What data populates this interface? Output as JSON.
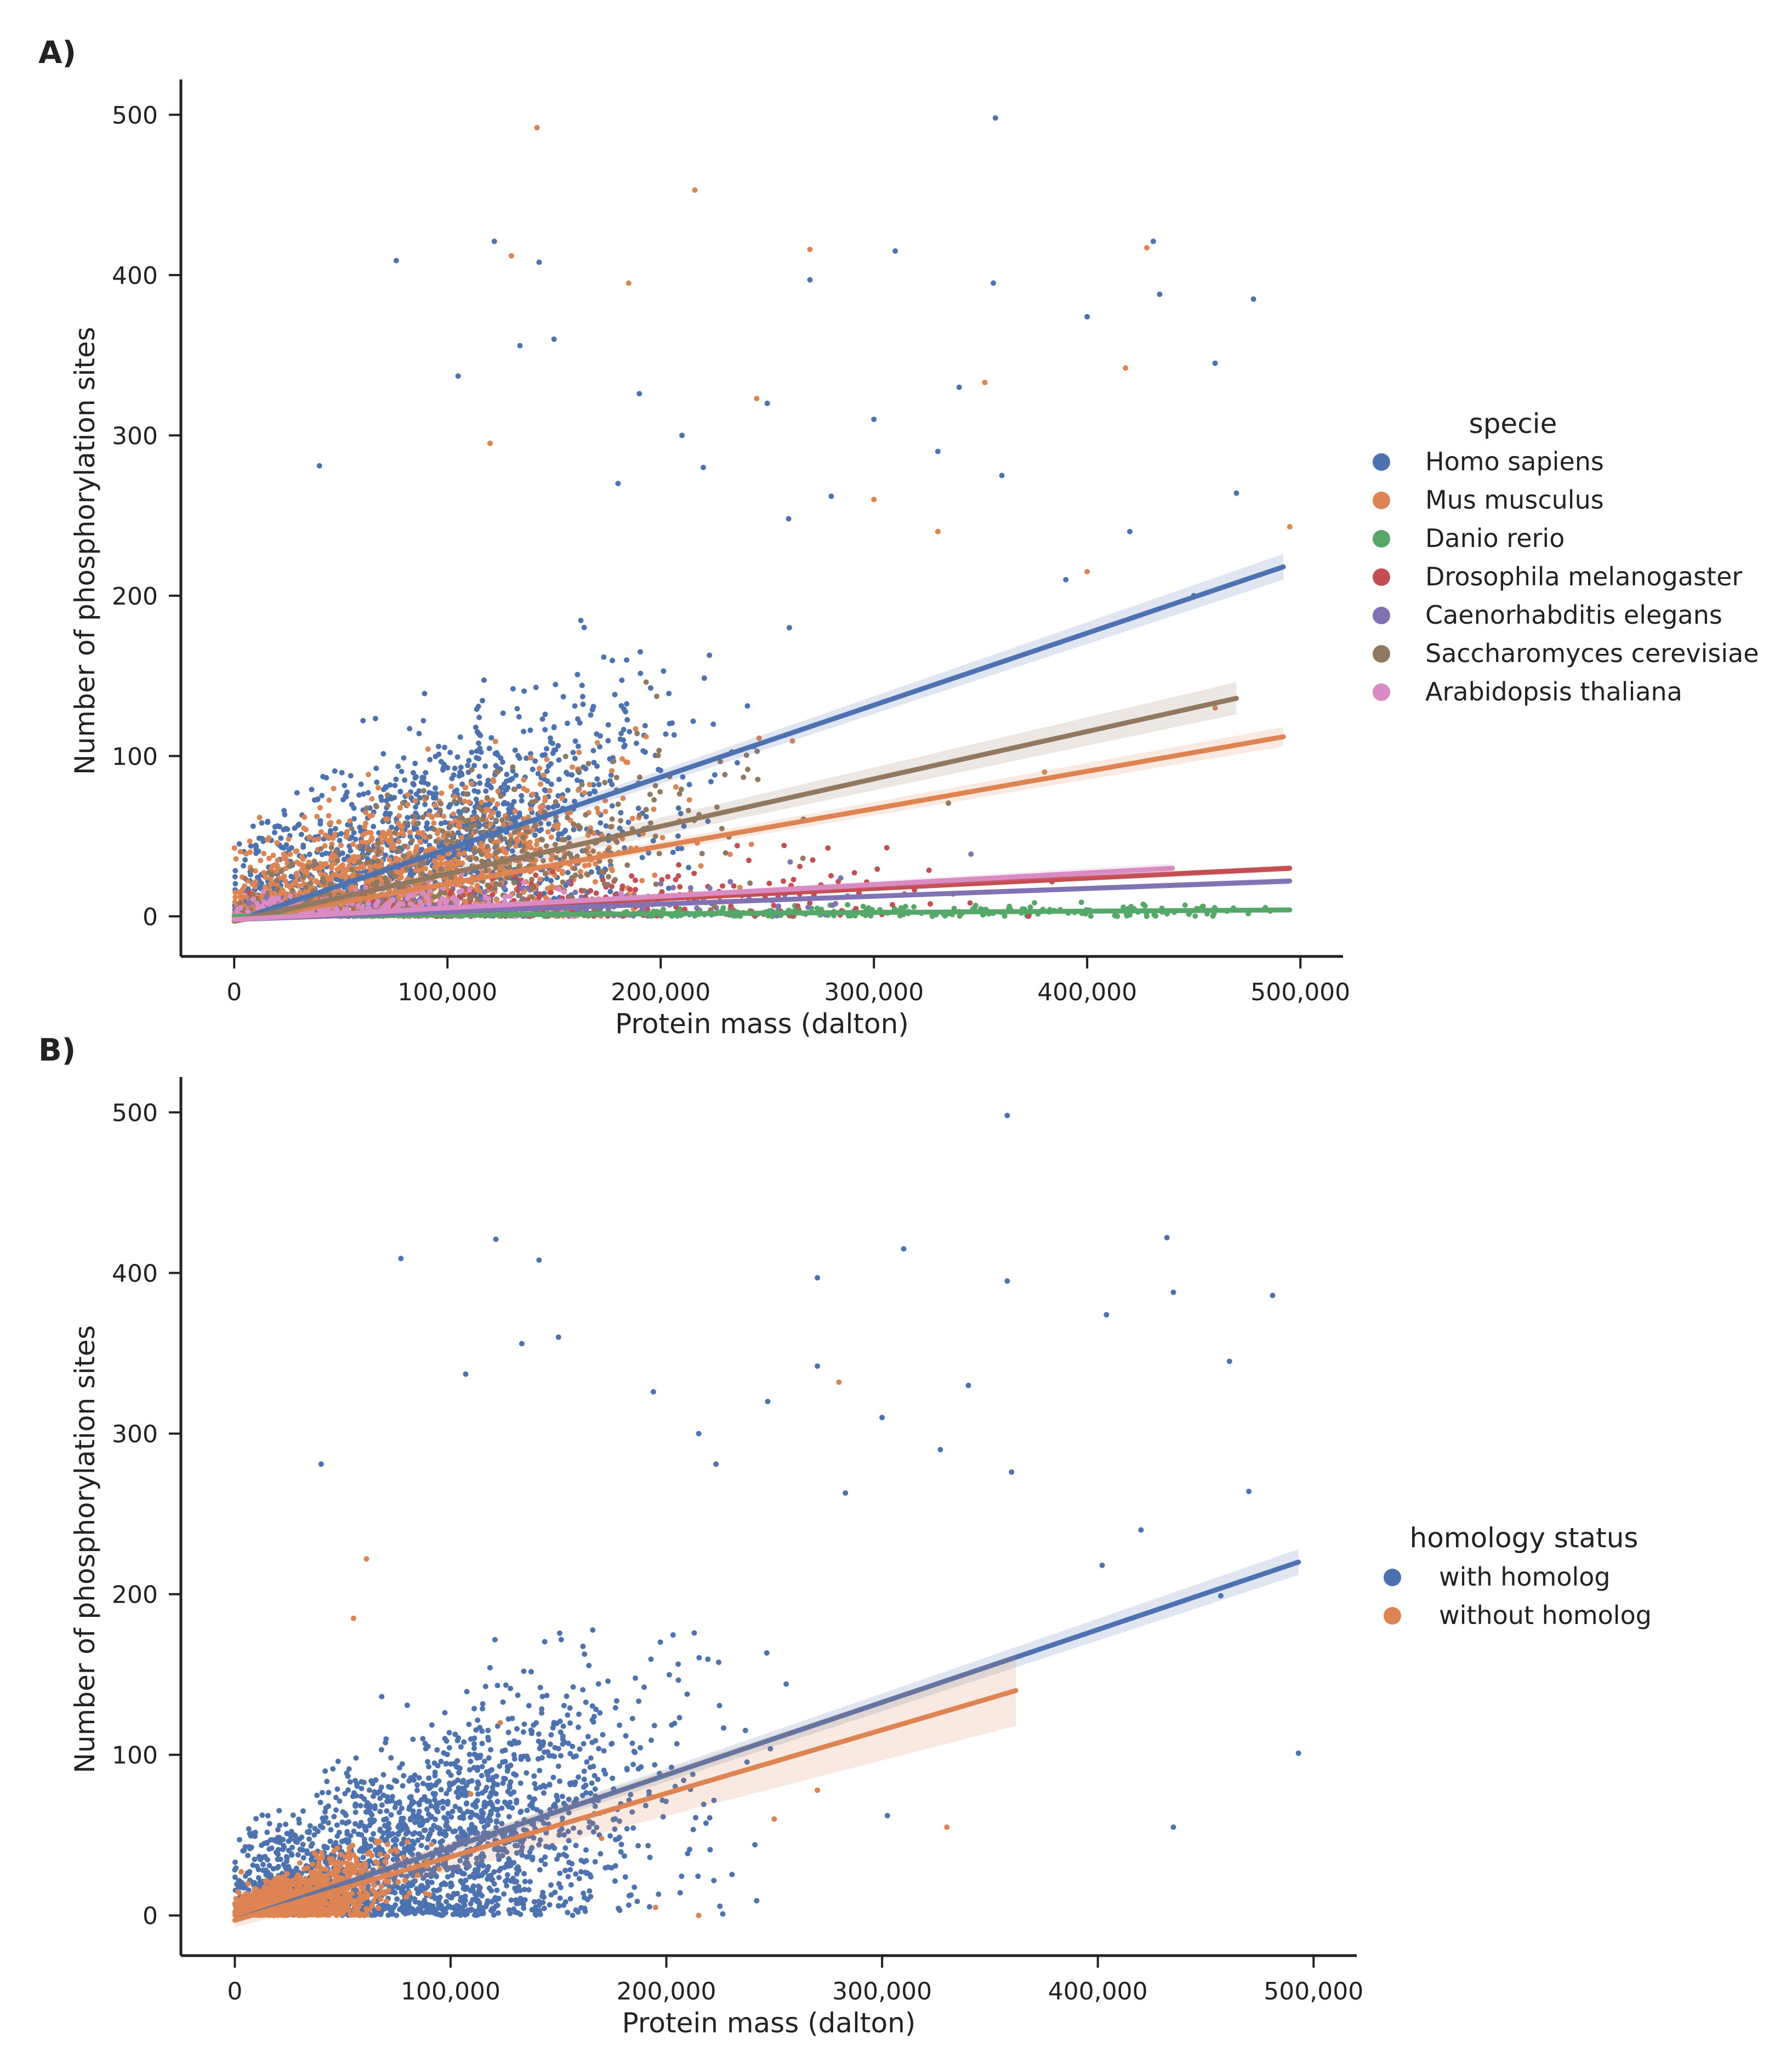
{
  "chart_data": [
    {
      "type": "scatter",
      "panel_label": "A)",
      "xlabel": "Protein mass (dalton)",
      "ylabel": "Number of phosphorylation sites",
      "xlim": [
        -25000,
        520000
      ],
      "ylim": [
        -25,
        522
      ],
      "xticks": [
        0,
        100000,
        200000,
        300000,
        400000,
        500000
      ],
      "xtick_labels": [
        "0",
        "100,000",
        "200,000",
        "300,000",
        "400,000",
        "500,000"
      ],
      "yticks": [
        0,
        100,
        200,
        300,
        400,
        500
      ],
      "ytick_labels": [
        "0",
        "100",
        "200",
        "300",
        "400",
        "500"
      ],
      "legend": {
        "title": "specie",
        "entries": [
          "Homo sapiens",
          "Mus musculus",
          "Danio rerio",
          "Drosophila melanogaster",
          "Caenorhabditis elegans",
          "Saccharomyces cerevisiae",
          "Arabidopsis thaliana"
        ],
        "placement": "right"
      },
      "series": [
        {
          "name": "Homo sapiens",
          "color": "#4c72b0",
          "fit": {
            "x": [
              0,
              492000
            ],
            "y": [
              -3,
              218
            ]
          },
          "ci": 8,
          "cloud_center": [
            90000,
            55
          ],
          "cloud_spread": [
            55000,
            40
          ],
          "n": 1500,
          "outliers": [
            [
              357000,
              498
            ],
            [
              122000,
              421
            ],
            [
              76000,
              409
            ],
            [
              143000,
              408
            ],
            [
              431000,
              421
            ],
            [
              434000,
              388
            ],
            [
              478000,
              385
            ],
            [
              400000,
              374
            ],
            [
              270000,
              397
            ],
            [
              310000,
              415
            ],
            [
              356000,
              395
            ],
            [
              134000,
              356
            ],
            [
              150000,
              360
            ],
            [
              40000,
              281
            ],
            [
              460000,
              345
            ],
            [
              190000,
              326
            ],
            [
              250000,
              320
            ],
            [
              340000,
              330
            ],
            [
              300000,
              310
            ],
            [
              105000,
              337
            ],
            [
              210000,
              300
            ],
            [
              280000,
              262
            ],
            [
              330000,
              290
            ],
            [
              220000,
              280
            ],
            [
              360000,
              275
            ],
            [
              260000,
              248
            ],
            [
              180000,
              270
            ],
            [
              420000,
              240
            ],
            [
              390000,
              210
            ],
            [
              450000,
              200
            ],
            [
              470000,
              264
            ]
          ]
        },
        {
          "name": "Mus musculus",
          "color": "#dd8452",
          "fit": {
            "x": [
              0,
              492000
            ],
            "y": [
              -3,
              112
            ]
          },
          "ci": 6,
          "cloud_center": [
            80000,
            45
          ],
          "cloud_spread": [
            55000,
            35
          ],
          "n": 1300,
          "outliers": [
            [
              142000,
              492
            ],
            [
              216000,
              453
            ],
            [
              270000,
              416
            ],
            [
              428000,
              417
            ],
            [
              130000,
              412
            ],
            [
              185000,
              395
            ],
            [
              418000,
              342
            ],
            [
              352000,
              333
            ],
            [
              120000,
              295
            ],
            [
              245000,
              323
            ],
            [
              300000,
              260
            ],
            [
              400000,
              215
            ],
            [
              330000,
              240
            ],
            [
              495000,
              243
            ],
            [
              460000,
              130
            ],
            [
              380000,
              90
            ]
          ]
        },
        {
          "name": "Danio rerio",
          "color": "#55a868",
          "fit": {
            "x": [
              0,
              495000
            ],
            "y": [
              0,
              4
            ]
          },
          "ci": 1,
          "cloud_center": [
            250000,
            2
          ],
          "cloud_spread": [
            140000,
            2
          ],
          "n": 350,
          "outliers": []
        },
        {
          "name": "Drosophila melanogaster",
          "color": "#c44e52",
          "fit": {
            "x": [
              0,
              495000
            ],
            "y": [
              -2,
              30
            ]
          },
          "ci": 2,
          "cloud_center": [
            150000,
            15
          ],
          "cloud_spread": [
            100000,
            12
          ],
          "n": 250,
          "outliers": []
        },
        {
          "name": "Caenorhabditis elegans",
          "color": "#8172b3",
          "fit": {
            "x": [
              0,
              495000
            ],
            "y": [
              -2,
              22
            ]
          },
          "ci": 2,
          "cloud_center": [
            120000,
            10
          ],
          "cloud_spread": [
            90000,
            8
          ],
          "n": 200,
          "outliers": []
        },
        {
          "name": "Saccharomyces cerevisiae",
          "color": "#937860",
          "fit": {
            "x": [
              0,
              470000
            ],
            "y": [
              -3,
              136
            ]
          },
          "ci": 10,
          "cloud_center": [
            110000,
            45
          ],
          "cloud_spread": [
            60000,
            30
          ],
          "n": 450,
          "outliers": []
        },
        {
          "name": "Arabidopsis thaliana",
          "color": "#da8bc3",
          "fit": {
            "x": [
              0,
              440000
            ],
            "y": [
              -2,
              30
            ]
          },
          "ci": 3,
          "cloud_center": [
            60000,
            12
          ],
          "cloud_spread": [
            40000,
            10
          ],
          "n": 300,
          "outliers": []
        }
      ]
    },
    {
      "type": "scatter",
      "panel_label": "B)",
      "xlabel": "Protein mass (dalton)",
      "ylabel": "Number of phosphorylation sites",
      "xlim": [
        -25000,
        520000
      ],
      "ylim": [
        -25,
        522
      ],
      "xticks": [
        0,
        100000,
        200000,
        300000,
        400000,
        500000
      ],
      "xtick_labels": [
        "0",
        "100,000",
        "200,000",
        "300,000",
        "400,000",
        "500,000"
      ],
      "yticks": [
        0,
        100,
        200,
        300,
        400,
        500
      ],
      "ytick_labels": [
        "0",
        "100",
        "200",
        "300",
        "400",
        "500"
      ],
      "legend": {
        "title": "homology status",
        "entries": [
          "with homolog",
          "without homolog"
        ],
        "placement": "right"
      },
      "series": [
        {
          "name": "with homolog",
          "color": "#4c72b0",
          "fit": {
            "x": [
              0,
              493000
            ],
            "y": [
              -3,
              220
            ]
          },
          "ci": 8,
          "cloud_center": [
            85000,
            50
          ],
          "cloud_spread": [
            55000,
            38
          ],
          "n": 2200,
          "outliers": [
            [
              358000,
              498
            ],
            [
              121000,
              421
            ],
            [
              77000,
              409
            ],
            [
              141000,
              408
            ],
            [
              432000,
              422
            ],
            [
              435000,
              388
            ],
            [
              481000,
              386
            ],
            [
              404000,
              374
            ],
            [
              310000,
              415
            ],
            [
              270000,
              397
            ],
            [
              358000,
              395
            ],
            [
              133000,
              356
            ],
            [
              150000,
              360
            ],
            [
              40000,
              281
            ],
            [
              461000,
              345
            ],
            [
              194000,
              326
            ],
            [
              247000,
              320
            ],
            [
              340000,
              330
            ],
            [
              300000,
              310
            ],
            [
              107000,
              337
            ],
            [
              270000,
              342
            ],
            [
              215000,
              300
            ],
            [
              283000,
              263
            ],
            [
              327000,
              290
            ],
            [
              360000,
              276
            ],
            [
              470000,
              264
            ],
            [
              223000,
              281
            ],
            [
              420000,
              240
            ],
            [
              402000,
              218
            ],
            [
              457000,
              199
            ],
            [
              493000,
              101
            ],
            [
              435000,
              55
            ]
          ]
        },
        {
          "name": "without homolog",
          "color": "#dd8452",
          "fit": {
            "x": [
              0,
              362000
            ],
            "y": [
              -3,
              140
            ]
          },
          "ci": 22,
          "cloud_center": [
            28000,
            10
          ],
          "cloud_spread": [
            22000,
            12
          ],
          "n": 1100,
          "outliers": [
            [
              280000,
              332
            ],
            [
              61000,
              222
            ],
            [
              55000,
              185
            ],
            [
              270000,
              78
            ],
            [
              330000,
              55
            ],
            [
              250000,
              60
            ],
            [
              215000,
              0
            ],
            [
              195000,
              5
            ],
            [
              170000,
              48
            ],
            [
              123000,
              120
            ]
          ]
        }
      ]
    }
  ]
}
